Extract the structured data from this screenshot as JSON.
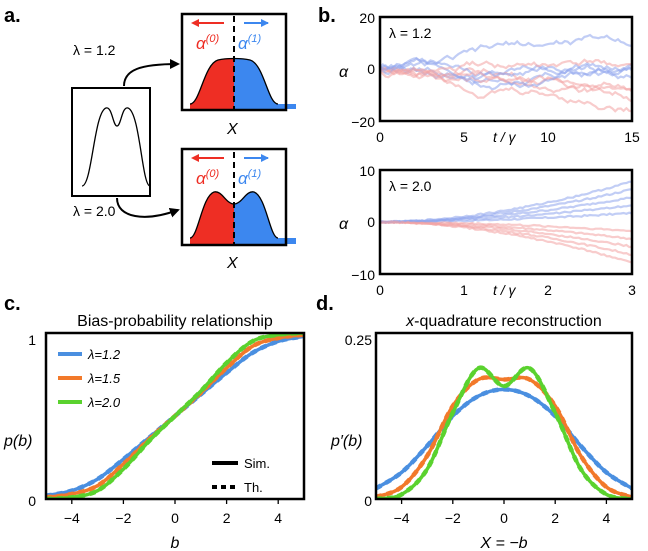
{
  "colors": {
    "blue": "#4a8fe0",
    "orange": "#f2792a",
    "green": "#5ad22e",
    "red": "#ee2e24",
    "light_blue": "#3c87ef",
    "traj_blue": "#8ea4ec",
    "traj_red": "#f2a3a3"
  },
  "panel_a": {
    "letter": "a.",
    "lambda_top": "λ = 1.2",
    "lambda_bottom": "λ = 2.0",
    "alpha0": "α",
    "alpha0_sup": "(0)",
    "alpha1": "α",
    "alpha1_sup": "(1)",
    "xlabel_top": "X",
    "xlabel_bottom": "X"
  },
  "panel_b": {
    "letter": "b.",
    "top": {
      "lambda_label": "λ = 1.2",
      "ylabel": "α",
      "xlabel": "t / γ",
      "xticks": [
        "0",
        "5",
        "10",
        "15"
      ],
      "yticks": [
        "20",
        "0",
        "−20"
      ],
      "xlim": [
        0,
        15
      ],
      "ylim": [
        -20,
        20
      ]
    },
    "bottom": {
      "lambda_label": "λ = 2.0",
      "ylabel": "α",
      "xlabel": "t / γ",
      "xticks": [
        "0",
        "1",
        "2",
        "3"
      ],
      "yticks": [
        "10",
        "0",
        "−10"
      ],
      "xlim": [
        0,
        3
      ],
      "ylim": [
        -10,
        10
      ]
    }
  },
  "chart_data": [
    {
      "panel": "c",
      "letter": "c.",
      "type": "line",
      "title": "Bias-probability relationship",
      "xlabel": "b",
      "ylabel": "p(b)",
      "xlim": [
        -5,
        5
      ],
      "ylim": [
        0,
        1
      ],
      "xticks": [
        "−4",
        "−2",
        "0",
        "2",
        "4"
      ],
      "yticks": [
        "1",
        "0"
      ],
      "legend": [
        "λ=1.2",
        "λ=1.5",
        "λ=2.0"
      ],
      "style_legend": [
        "Sim.",
        "Th."
      ],
      "series": [
        {
          "name": "λ=1.2",
          "x": [
            -5,
            -4,
            -3,
            -2,
            -1,
            0,
            1,
            2,
            3,
            4,
            5
          ],
          "values": [
            0.02,
            0.05,
            0.12,
            0.24,
            0.37,
            0.5,
            0.63,
            0.76,
            0.88,
            0.95,
            0.98
          ]
        },
        {
          "name": "λ=1.5",
          "x": [
            -5,
            -4,
            -3,
            -2,
            -1,
            0,
            1,
            2,
            3,
            4,
            5
          ],
          "values": [
            0.01,
            0.03,
            0.08,
            0.21,
            0.36,
            0.5,
            0.64,
            0.79,
            0.92,
            0.97,
            0.99
          ]
        },
        {
          "name": "λ=2.0",
          "x": [
            -5,
            -4,
            -3,
            -2,
            -1,
            0,
            1,
            2,
            3,
            4,
            5
          ],
          "values": [
            0.0,
            0.01,
            0.05,
            0.18,
            0.35,
            0.5,
            0.65,
            0.82,
            0.95,
            0.99,
            1.0
          ]
        }
      ]
    },
    {
      "panel": "d",
      "letter": "d.",
      "type": "line",
      "title_prefix": "x",
      "title": "-quadrature reconstruction",
      "xlabel": "X = −b",
      "ylabel": "p′(b)",
      "xlim": [
        -5,
        5
      ],
      "ylim": [
        0,
        0.25
      ],
      "xticks": [
        "−4",
        "−2",
        "0",
        "2",
        "4"
      ],
      "yticks": [
        "0.25",
        "0"
      ],
      "series": [
        {
          "name": "λ=1.2",
          "x": [
            -5,
            -4,
            -3,
            -2,
            -1,
            0,
            1,
            2,
            3,
            4,
            5
          ],
          "values": [
            0.016,
            0.04,
            0.08,
            0.125,
            0.155,
            0.165,
            0.155,
            0.125,
            0.08,
            0.04,
            0.016
          ]
        },
        {
          "name": "λ=1.5",
          "x": [
            -5,
            -4,
            -3,
            -2,
            -1,
            0,
            1,
            2,
            3,
            4,
            5
          ],
          "values": [
            0.003,
            0.018,
            0.065,
            0.14,
            0.18,
            0.18,
            0.18,
            0.14,
            0.065,
            0.018,
            0.003
          ]
        },
        {
          "name": "λ=2.0",
          "x": [
            -5,
            -4,
            -3,
            -2,
            -1,
            0,
            1,
            2,
            3,
            4,
            5
          ],
          "values": [
            0.0,
            0.007,
            0.045,
            0.13,
            0.197,
            0.17,
            0.197,
            0.13,
            0.045,
            0.007,
            0.0
          ]
        }
      ]
    }
  ]
}
